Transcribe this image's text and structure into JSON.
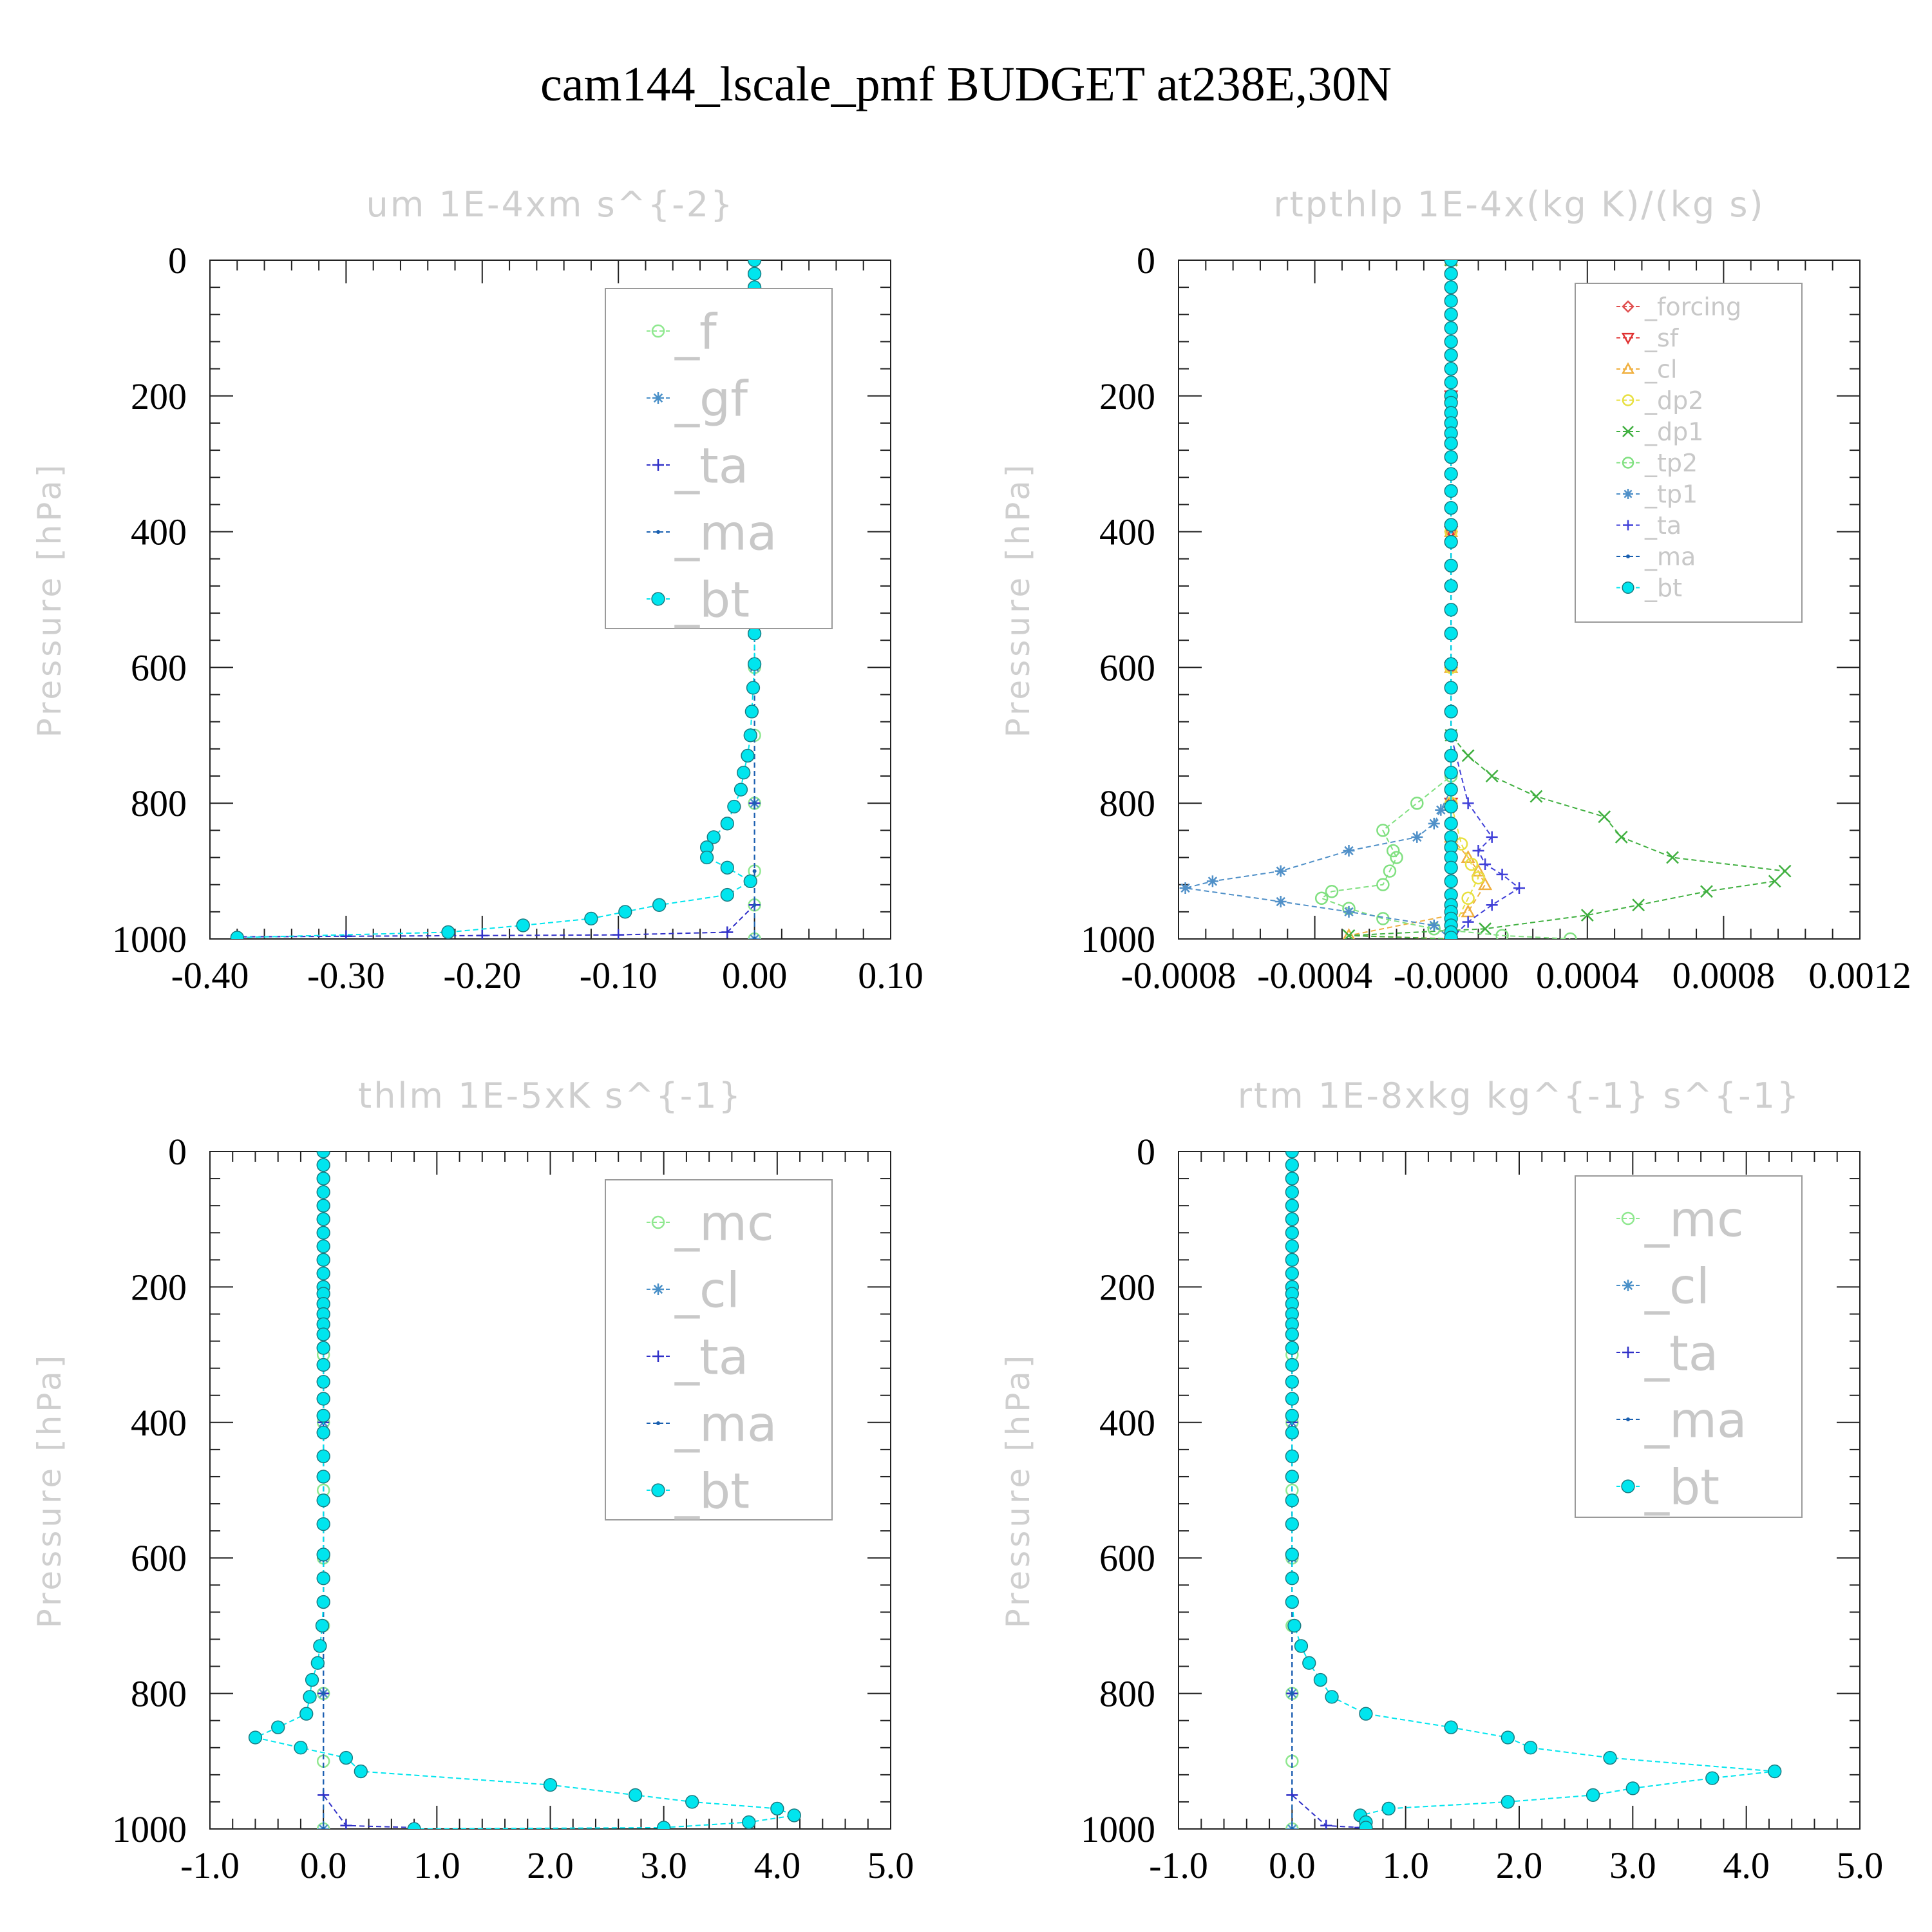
{
  "title": "cam144_lscale_pmf  BUDGET at238E,30N",
  "chart_data": [
    {
      "type": "line",
      "title": "um   1E-4xm  s^{-2}",
      "ylabel": "Pressure  [hPa]",
      "xlim": [
        -0.4,
        0.1
      ],
      "ylim": [
        1000,
        0
      ],
      "xticks": [
        "-0.40",
        "-0.30",
        "-0.20",
        "-0.10",
        "0.00",
        "0.10"
      ],
      "yticks": [
        "0",
        "200",
        "400",
        "600",
        "800",
        "1000"
      ],
      "legend_position": "upper-right",
      "legend_font": "large",
      "series": [
        {
          "name": "_f",
          "color": "#8fe88f",
          "marker": "circle-open",
          "x": [
            0,
            0,
            0,
            0,
            0,
            0,
            0,
            0,
            0,
            0,
            0,
            0
          ],
          "y": [
            0,
            100,
            200,
            300,
            400,
            500,
            600,
            700,
            800,
            900,
            950,
            1000
          ]
        },
        {
          "name": "_gf",
          "color": "#4a90c8",
          "marker": "star",
          "x": [
            0,
            0,
            0,
            0,
            0,
            0
          ],
          "y": [
            0,
            200,
            400,
            600,
            800,
            1000
          ]
        },
        {
          "name": "_ta",
          "color": "#3030c8",
          "marker": "plus",
          "x": [
            0,
            0,
            0,
            0,
            0,
            0,
            -0.02,
            -0.1,
            -0.2,
            -0.3,
            -0.38
          ],
          "y": [
            0,
            200,
            400,
            600,
            800,
            950,
            990,
            994,
            995,
            996,
            997
          ]
        },
        {
          "name": "_ma",
          "color": "#1a60b0",
          "marker": "dot",
          "x": [
            0,
            0,
            0,
            0,
            0,
            0,
            0,
            0
          ],
          "y": [
            0,
            200,
            400,
            600,
            800,
            900,
            950,
            1000
          ]
        },
        {
          "name": "_bt",
          "color": "#00e5ee",
          "marker": "circle-filled",
          "x": [
            0,
            0,
            0,
            0,
            0,
            0,
            0,
            0,
            0,
            0,
            0,
            0,
            0.002,
            0.003,
            0.004,
            0.004,
            0.003,
            0.002,
            0.002,
            0.002,
            0.002,
            0.001,
            0.001,
            0,
            0,
            0,
            0,
            -0.001,
            -0.002,
            -0.003,
            -0.005,
            -0.008,
            -0.01,
            -0.015,
            -0.02,
            -0.03,
            -0.035,
            -0.035,
            -0.02,
            -0.003,
            -0.02,
            -0.07,
            -0.095,
            -0.12,
            -0.17,
            -0.225,
            -0.38
          ],
          "y": [
            0,
            20,
            40,
            60,
            80,
            100,
            120,
            140,
            160,
            180,
            200,
            210,
            225,
            240,
            255,
            270,
            290,
            315,
            340,
            365,
            390,
            415,
            450,
            480,
            515,
            550,
            595,
            630,
            665,
            700,
            730,
            755,
            780,
            805,
            830,
            850,
            865,
            880,
            895,
            915,
            935,
            950,
            960,
            970,
            980,
            990,
            998
          ]
        }
      ]
    },
    {
      "type": "line",
      "title": "rtpthlp   1E-4x(kg  K)/(kg  s)",
      "ylabel": "Pressure  [hPa]",
      "xlim": [
        -0.0008,
        0.0012
      ],
      "ylim": [
        1000,
        0
      ],
      "xticks": [
        "-0.0008",
        "-0.0004",
        "-0.0000",
        "0.0004",
        "0.0008",
        "0.0012"
      ],
      "yticks": [
        "0",
        "200",
        "400",
        "600",
        "800",
        "1000"
      ],
      "legend_position": "upper-right",
      "legend_font": "small",
      "series": [
        {
          "name": "_forcing",
          "color": "#e05050",
          "marker": "diamond",
          "x": [
            0,
            0,
            0,
            0,
            0,
            0
          ],
          "y": [
            0,
            200,
            400,
            600,
            800,
            1000
          ]
        },
        {
          "name": "_sf",
          "color": "#e03030",
          "marker": "triangle-down",
          "x": [
            0,
            0,
            0,
            0,
            0,
            0
          ],
          "y": [
            0,
            200,
            400,
            600,
            800,
            1000
          ]
        },
        {
          "name": "_cl",
          "color": "#f0b040",
          "marker": "triangle-up",
          "x": [
            0,
            0,
            0,
            0,
            0,
            0,
            5e-05,
            8e-05,
            0.0001,
            5e-05,
            -0.0003,
            0
          ],
          "y": [
            0,
            200,
            400,
            600,
            800,
            850,
            880,
            900,
            920,
            960,
            995,
            1000
          ]
        },
        {
          "name": "_dp2",
          "color": "#e8e040",
          "marker": "circle-open",
          "x": [
            0,
            0,
            0,
            0,
            0,
            3e-05,
            6e-05,
            8e-05,
            5e-05,
            0
          ],
          "y": [
            0,
            200,
            400,
            600,
            800,
            860,
            890,
            910,
            940,
            990
          ]
        },
        {
          "name": "_dp1",
          "color": "#40b040",
          "marker": "x",
          "x": [
            0,
            0,
            5e-05,
            0.00012,
            0.00025,
            0.00045,
            0.0005,
            0.00065,
            0.00098,
            0.00095,
            0.00075,
            0.00055,
            0.0004,
            0.0001,
            -0.0003,
            0
          ],
          "y": [
            0,
            700,
            730,
            760,
            790,
            820,
            850,
            880,
            900,
            915,
            930,
            950,
            965,
            985,
            995,
            1000
          ]
        },
        {
          "name": "_tp2",
          "color": "#80e080",
          "marker": "circle-open",
          "x": [
            0,
            0,
            -0.0001,
            -0.0002,
            -0.00017,
            -0.00016,
            -0.00018,
            -0.0002,
            -0.00035,
            -0.00038,
            -0.0003,
            -0.0002,
            -5e-05,
            0.00015,
            0.00035
          ],
          "y": [
            0,
            760,
            800,
            840,
            870,
            880,
            900,
            920,
            930,
            940,
            955,
            970,
            985,
            995,
            1000
          ]
        },
        {
          "name": "_tp1",
          "color": "#5090c8",
          "marker": "star",
          "x": [
            0,
            0,
            -3e-05,
            -5e-05,
            -0.0001,
            -0.0003,
            -0.0005,
            -0.0007,
            -0.00078,
            -0.0005,
            -0.0003,
            -5e-05,
            0
          ],
          "y": [
            0,
            780,
            810,
            830,
            850,
            870,
            900,
            915,
            925,
            945,
            960,
            980,
            1000
          ]
        },
        {
          "name": "_ta",
          "color": "#4040d8",
          "marker": "plus",
          "x": [
            0,
            0,
            5e-05,
            0.00012,
            8e-05,
            0.0001,
            0.00015,
            0.0002,
            0.00012,
            5e-05,
            0
          ],
          "y": [
            0,
            700,
            800,
            850,
            870,
            890,
            905,
            925,
            950,
            975,
            1000
          ]
        },
        {
          "name": "_ma",
          "color": "#1a60b0",
          "marker": "dot",
          "x": [
            0,
            0,
            0,
            0,
            0,
            0
          ],
          "y": [
            0,
            200,
            400,
            600,
            800,
            1000
          ]
        },
        {
          "name": "_bt",
          "color": "#00e5ee",
          "marker": "circle-filled",
          "x": [
            0,
            0,
            0,
            0,
            0,
            0,
            0,
            0,
            0,
            0,
            0,
            0,
            0,
            0,
            0,
            0,
            0,
            0,
            0,
            0,
            0,
            0,
            0,
            0,
            0,
            0,
            0,
            0,
            0,
            0,
            0,
            0,
            0,
            0,
            0,
            0,
            0,
            0,
            0,
            0,
            0,
            0,
            0,
            0,
            0,
            0,
            0
          ],
          "y": [
            0,
            20,
            40,
            60,
            80,
            100,
            120,
            140,
            160,
            180,
            200,
            210,
            225,
            240,
            255,
            270,
            290,
            315,
            340,
            365,
            390,
            415,
            450,
            480,
            515,
            550,
            595,
            630,
            665,
            700,
            730,
            755,
            780,
            805,
            830,
            850,
            865,
            880,
            895,
            915,
            935,
            950,
            960,
            970,
            980,
            990,
            998
          ]
        }
      ]
    },
    {
      "type": "line",
      "title": "thlm   1E-5xK  s^{-1}",
      "ylabel": "Pressure  [hPa]",
      "xlim": [
        -1.0,
        5.0
      ],
      "ylim": [
        1000,
        0
      ],
      "xticks": [
        "-1.0",
        "0.0",
        "1.0",
        "2.0",
        "3.0",
        "4.0",
        "5.0"
      ],
      "yticks": [
        "0",
        "200",
        "400",
        "600",
        "800",
        "1000"
      ],
      "legend_position": "upper-right",
      "legend_font": "large",
      "series": [
        {
          "name": "_mc",
          "color": "#8fe88f",
          "marker": "circle-open",
          "x": [
            0,
            0,
            0,
            0,
            0,
            0,
            0,
            0,
            0,
            0,
            0
          ],
          "y": [
            0,
            100,
            200,
            300,
            400,
            500,
            600,
            700,
            800,
            900,
            1000
          ]
        },
        {
          "name": "_cl",
          "color": "#4a90c8",
          "marker": "star",
          "x": [
            0,
            0,
            0,
            0,
            0,
            0
          ],
          "y": [
            0,
            200,
            400,
            600,
            800,
            1000
          ]
        },
        {
          "name": "_ta",
          "color": "#3030c8",
          "marker": "plus",
          "x": [
            0,
            0,
            0,
            0,
            0,
            0,
            0.2,
            0.8
          ],
          "y": [
            0,
            200,
            400,
            600,
            800,
            950,
            995,
            998
          ]
        },
        {
          "name": "_ma",
          "color": "#1a60b0",
          "marker": "dot",
          "x": [
            0,
            0,
            0,
            0,
            0,
            0
          ],
          "y": [
            0,
            200,
            400,
            600,
            800,
            1000
          ]
        },
        {
          "name": "_bt",
          "color": "#00e5ee",
          "marker": "circle-filled",
          "x": [
            0,
            0,
            0,
            0,
            0,
            0,
            0,
            0,
            0,
            0,
            0,
            0,
            0,
            0,
            0,
            0,
            0,
            0,
            0,
            0,
            0,
            0,
            0,
            0,
            0,
            0,
            0,
            0,
            0,
            -0.01,
            -0.03,
            -0.05,
            -0.1,
            -0.12,
            -0.15,
            -0.4,
            -0.6,
            -0.2,
            0.2,
            0.33,
            2.0,
            2.75,
            3.25,
            4.0,
            4.15,
            3.75,
            3.0,
            0.8
          ],
          "y": [
            0,
            20,
            40,
            60,
            80,
            100,
            120,
            140,
            160,
            180,
            200,
            210,
            225,
            240,
            255,
            270,
            290,
            315,
            340,
            365,
            390,
            415,
            450,
            480,
            515,
            550,
            595,
            630,
            665,
            700,
            730,
            755,
            780,
            805,
            830,
            850,
            865,
            880,
            895,
            915,
            935,
            950,
            960,
            970,
            980,
            990,
            998,
            1000
          ]
        }
      ]
    },
    {
      "type": "line",
      "title": "rtm   1E-8xkg  kg^{-1}  s^{-1}",
      "ylabel": "Pressure  [hPa]",
      "xlim": [
        -1.0,
        5.0
      ],
      "ylim": [
        1000,
        0
      ],
      "xticks": [
        "-1.0",
        "0.0",
        "1.0",
        "2.0",
        "3.0",
        "4.0",
        "5.0"
      ],
      "yticks": [
        "0",
        "200",
        "400",
        "600",
        "800",
        "1000"
      ],
      "legend_position": "upper-right",
      "legend_font": "large",
      "series": [
        {
          "name": "_mc",
          "color": "#8fe88f",
          "marker": "circle-open",
          "x": [
            0,
            0,
            0,
            0,
            0,
            0,
            0,
            0,
            0,
            0,
            0
          ],
          "y": [
            0,
            100,
            200,
            300,
            400,
            500,
            600,
            700,
            800,
            900,
            1000
          ]
        },
        {
          "name": "_cl",
          "color": "#4a90c8",
          "marker": "star",
          "x": [
            0,
            0,
            0,
            0,
            0,
            0
          ],
          "y": [
            0,
            200,
            400,
            600,
            800,
            1000
          ]
        },
        {
          "name": "_ta",
          "color": "#3030c8",
          "marker": "plus",
          "x": [
            0,
            0,
            0,
            0,
            0,
            0,
            0.3,
            0.6
          ],
          "y": [
            0,
            200,
            400,
            600,
            800,
            950,
            995,
            998
          ]
        },
        {
          "name": "_ma",
          "color": "#1a60b0",
          "marker": "dot",
          "x": [
            0,
            0,
            0,
            0,
            0,
            0
          ],
          "y": [
            0,
            200,
            400,
            600,
            800,
            1000
          ]
        },
        {
          "name": "_bt",
          "color": "#00e5ee",
          "marker": "circle-filled",
          "x": [
            0,
            0,
            0,
            0,
            0,
            0,
            0,
            0,
            0,
            0,
            0,
            0,
            0,
            0,
            0,
            0,
            0,
            0,
            0,
            0,
            0,
            0,
            0,
            0,
            0,
            0,
            0,
            0,
            0,
            0.02,
            0.08,
            0.15,
            0.25,
            0.35,
            0.65,
            1.4,
            1.9,
            2.1,
            2.8,
            4.25,
            3.7,
            3.0,
            2.65,
            1.9,
            0.85,
            0.6,
            0.65,
            0.65
          ],
          "y": [
            0,
            20,
            40,
            60,
            80,
            100,
            120,
            140,
            160,
            180,
            200,
            210,
            225,
            240,
            255,
            270,
            290,
            315,
            340,
            365,
            390,
            415,
            450,
            480,
            515,
            550,
            595,
            630,
            665,
            700,
            730,
            755,
            780,
            805,
            830,
            850,
            865,
            880,
            895,
            915,
            925,
            940,
            950,
            960,
            970,
            980,
            990,
            998
          ]
        }
      ]
    }
  ]
}
